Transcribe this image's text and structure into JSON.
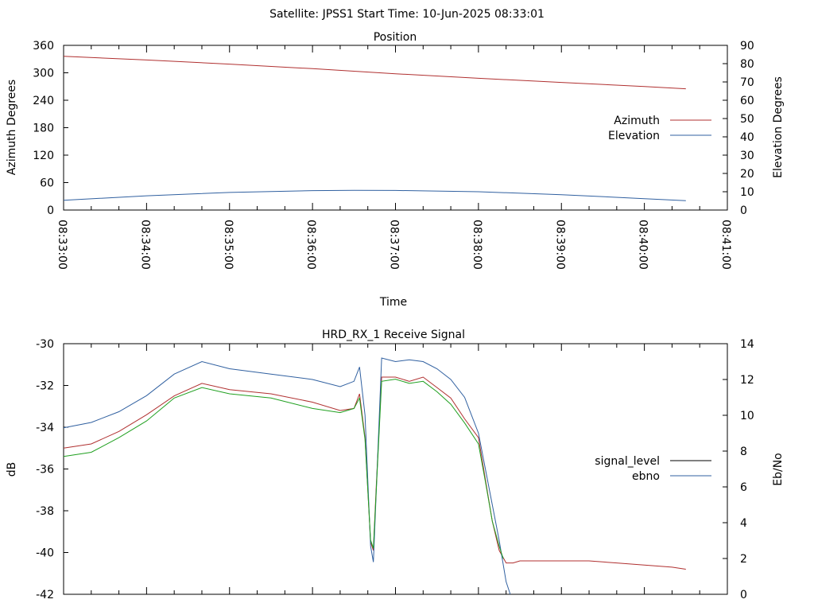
{
  "figure": {
    "header": "Satellite: JPSS1    Start Time: 10-Jun-2025 08:33:01"
  },
  "chart_data": [
    {
      "type": "line",
      "title": "Position",
      "xlabel": "Time",
      "ylabel": "Azimuth Degrees",
      "y2label": "Elevation Degrees",
      "x_ticks": [
        "08:33:00",
        "08:34:00",
        "08:35:00",
        "08:36:00",
        "08:37:00",
        "08:38:00",
        "08:39:00",
        "08:40:00",
        "08:41:00"
      ],
      "xlim_seconds": [
        0,
        480
      ],
      "ylim": [
        0,
        360
      ],
      "y_ticks": [
        0,
        60,
        120,
        180,
        240,
        300,
        360
      ],
      "y2lim": [
        0,
        90
      ],
      "y2_ticks": [
        0,
        10,
        20,
        30,
        40,
        50,
        60,
        70,
        80,
        90
      ],
      "legend_position": "right",
      "series": [
        {
          "name": "Azimuth",
          "axis": "left",
          "color": "#b03030",
          "x": [
            0,
            60,
            120,
            180,
            240,
            300,
            360,
            420,
            450
          ],
          "values": [
            336,
            328,
            319,
            309,
            298,
            288,
            279,
            270,
            265
          ]
        },
        {
          "name": "Elevation",
          "axis": "right",
          "color": "#3060a0",
          "x": [
            0,
            60,
            120,
            180,
            210,
            240,
            300,
            360,
            420,
            450
          ],
          "values": [
            5.3,
            7.8,
            9.6,
            10.6,
            10.8,
            10.7,
            10,
            8.4,
            6.2,
            5.1
          ]
        }
      ]
    },
    {
      "type": "line",
      "title": "HRD_RX_1 Receive Signal",
      "ylabel": "dB",
      "y2label": "Eb/No",
      "xlim_seconds": [
        0,
        480
      ],
      "ylim": [
        -42,
        -30
      ],
      "y_ticks": [
        -30,
        -32,
        -34,
        -36,
        -38,
        -40,
        -42
      ],
      "y2lim": [
        0,
        14
      ],
      "y2_ticks": [
        0,
        2,
        4,
        6,
        8,
        10,
        12,
        14
      ],
      "legend_position": "right",
      "series": [
        {
          "name": "signal_level",
          "axis": "left",
          "color": "#b03030",
          "x": [
            0,
            20,
            40,
            60,
            80,
            100,
            120,
            150,
            180,
            200,
            210,
            214,
            218,
            222,
            224,
            226,
            230,
            240,
            250,
            260,
            270,
            280,
            290,
            300,
            305,
            310,
            315,
            320,
            322,
            325,
            330,
            340,
            360,
            380,
            400,
            420,
            440,
            450
          ],
          "values": [
            -35,
            -34.8,
            -34.2,
            -33.4,
            -32.5,
            -31.9,
            -32.2,
            -32.4,
            -32.8,
            -33.2,
            -33.1,
            -32.4,
            -34.5,
            -39.5,
            -39.9,
            -37,
            -31.6,
            -31.6,
            -31.8,
            -31.6,
            -32.1,
            -32.6,
            -33.6,
            -34.5,
            -36.5,
            -38.5,
            -39.9,
            -40.5,
            -40.5,
            -40.5,
            -40.4,
            -40.4,
            -40.4,
            -40.4,
            -40.5,
            -40.6,
            -40.7,
            -40.8
          ]
        },
        {
          "name": "ebno",
          "axis": "right",
          "color": "#3060a0",
          "x": [
            0,
            20,
            40,
            60,
            80,
            100,
            120,
            150,
            180,
            200,
            210,
            214,
            218,
            222,
            224,
            226,
            230,
            240,
            250,
            260,
            270,
            280,
            290,
            300,
            305,
            310,
            315,
            320,
            323
          ],
          "values": [
            9.3,
            9.6,
            10.2,
            11.1,
            12.3,
            13,
            12.6,
            12.3,
            12,
            11.6,
            11.9,
            12.7,
            10,
            2.7,
            1.8,
            5.5,
            13.2,
            13,
            13.1,
            13,
            12.6,
            12,
            11,
            9,
            7,
            5,
            3,
            0.7,
            0
          ]
        },
        {
          "name": "",
          "axis": "left",
          "color": "#20a020",
          "x": [
            0,
            20,
            40,
            60,
            80,
            100,
            120,
            150,
            180,
            200,
            210,
            214,
            218,
            222,
            224,
            226,
            230,
            240,
            250,
            260,
            270,
            280,
            290,
            300,
            305,
            310,
            315,
            318
          ],
          "values": [
            -35.4,
            -35.2,
            -34.5,
            -33.7,
            -32.6,
            -32.1,
            -32.4,
            -32.6,
            -33.1,
            -33.3,
            -33.1,
            -32.6,
            -34.6,
            -39.4,
            -39.8,
            -37.2,
            -31.8,
            -31.7,
            -31.9,
            -31.8,
            -32.3,
            -32.9,
            -33.8,
            -34.8,
            -36.6,
            -38.5,
            -39.7,
            -40.3
          ]
        }
      ]
    }
  ]
}
